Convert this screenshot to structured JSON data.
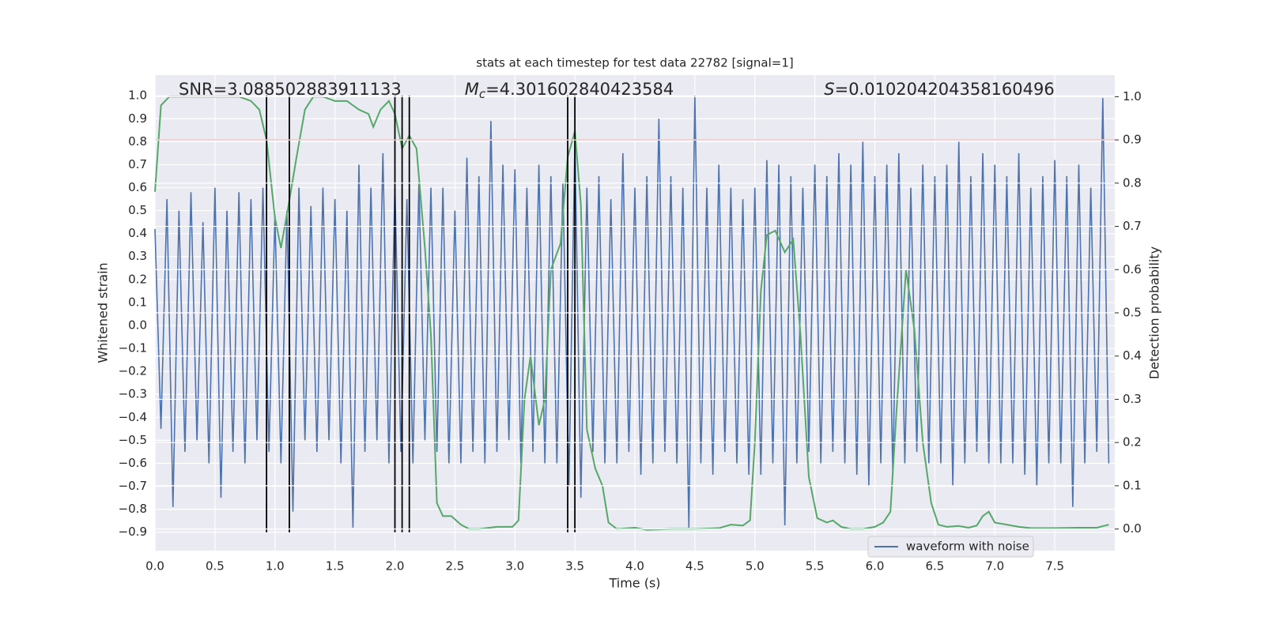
{
  "chart_data": {
    "type": "line",
    "title": "stats at each timestep for test data 22782 [signal=1]",
    "xlabel": "Time (s)",
    "ylabel": "Whitened strain",
    "y2label": "Detection probability",
    "grid": true,
    "legend": "lower right",
    "xlim": [
      0,
      8
    ],
    "ylim": [
      -0.98,
      1.09
    ],
    "y2lim": [
      -0.05,
      1.05
    ],
    "xticks": [
      {
        "value": 0,
        "label": "0.0"
      },
      {
        "value": 0.5,
        "label": "0.5"
      },
      {
        "value": 1,
        "label": "1.0"
      },
      {
        "value": 1.5,
        "label": "1.5"
      },
      {
        "value": 2,
        "label": "2.0"
      },
      {
        "value": 2.5,
        "label": "2.5"
      },
      {
        "value": 3,
        "label": "3.0"
      },
      {
        "value": 3.5,
        "label": "3.5"
      },
      {
        "value": 4,
        "label": "4.0"
      },
      {
        "value": 4.5,
        "label": "4.5"
      },
      {
        "value": 5,
        "label": "5.0"
      },
      {
        "value": 5.5,
        "label": "5.5"
      },
      {
        "value": 6,
        "label": "6.0"
      },
      {
        "value": 6.5,
        "label": "6.5"
      },
      {
        "value": 7,
        "label": "7.0"
      },
      {
        "value": 7.5,
        "label": "7.5"
      }
    ],
    "yticks": [
      {
        "value": -0.9,
        "label": "−0.9"
      },
      {
        "value": -0.8,
        "label": "−0.8"
      },
      {
        "value": -0.7,
        "label": "−0.7"
      },
      {
        "value": -0.6,
        "label": "−0.6"
      },
      {
        "value": -0.5,
        "label": "−0.5"
      },
      {
        "value": -0.4,
        "label": "−0.4"
      },
      {
        "value": -0.3,
        "label": "−0.3"
      },
      {
        "value": -0.2,
        "label": "−0.2"
      },
      {
        "value": -0.1,
        "label": "−0.1"
      },
      {
        "value": 0,
        "label": "0.0"
      },
      {
        "value": 0.1,
        "label": "0.1"
      },
      {
        "value": 0.2,
        "label": "0.2"
      },
      {
        "value": 0.3,
        "label": "0.3"
      },
      {
        "value": 0.4,
        "label": "0.4"
      },
      {
        "value": 0.5,
        "label": "0.5"
      },
      {
        "value": 0.6,
        "label": "0.6"
      },
      {
        "value": 0.7,
        "label": "0.7"
      },
      {
        "value": 0.8,
        "label": "0.8"
      },
      {
        "value": 0.9,
        "label": "0.9"
      },
      {
        "value": 1,
        "label": "1.0"
      }
    ],
    "y2ticks": [
      {
        "value": 0,
        "label": "0.0"
      },
      {
        "value": 0.1,
        "label": "0.1"
      },
      {
        "value": 0.2,
        "label": "0.2"
      },
      {
        "value": 0.3,
        "label": "0.3"
      },
      {
        "value": 0.4,
        "label": "0.4"
      },
      {
        "value": 0.5,
        "label": "0.5"
      },
      {
        "value": 0.6,
        "label": "0.6"
      },
      {
        "value": 0.7,
        "label": "0.7"
      },
      {
        "value": 0.8,
        "label": "0.8"
      },
      {
        "value": 0.9,
        "label": "0.9"
      },
      {
        "value": 1,
        "label": "1.0"
      }
    ],
    "annotations": [
      {
        "text": "SNR=3.088502883911133"
      },
      {
        "symbol": "M",
        "sub": "c",
        "text": "=4.301602840423584"
      },
      {
        "symbol": "S",
        "text": "=0.010204204358160496"
      }
    ],
    "threshold": {
      "value": 0.9,
      "axis": "y2",
      "color": "#c44e52"
    },
    "vlines": {
      "x": [
        0.93,
        1.12,
        2.0,
        2.06,
        2.12,
        3.44,
        3.5
      ],
      "ymin": -0.9,
      "ymax": 1.0,
      "color": "#000000"
    },
    "series": [
      {
        "name": "waveform with noise",
        "color": "#4c72b0",
        "axis": "y",
        "x": [
          0,
          0.05,
          0.1,
          0.15,
          0.2,
          0.25,
          0.3,
          0.35,
          0.4,
          0.45,
          0.5,
          0.55,
          0.6,
          0.65,
          0.7,
          0.75,
          0.8,
          0.85,
          0.9,
          0.95,
          1,
          1.05,
          1.1,
          1.15,
          1.2,
          1.25,
          1.3,
          1.35,
          1.4,
          1.45,
          1.5,
          1.55,
          1.6,
          1.65,
          1.7,
          1.75,
          1.8,
          1.85,
          1.9,
          1.95,
          2,
          2.05,
          2.1,
          2.15,
          2.2,
          2.25,
          2.3,
          2.35,
          2.4,
          2.45,
          2.5,
          2.55,
          2.6,
          2.65,
          2.7,
          2.75,
          2.8,
          2.85,
          2.9,
          2.95,
          3,
          3.05,
          3.1,
          3.15,
          3.2,
          3.25,
          3.3,
          3.35,
          3.4,
          3.45,
          3.5,
          3.55,
          3.6,
          3.65,
          3.7,
          3.75,
          3.8,
          3.85,
          3.9,
          3.95,
          4,
          4.05,
          4.1,
          4.15,
          4.2,
          4.25,
          4.3,
          4.35,
          4.4,
          4.45,
          4.5,
          4.55,
          4.6,
          4.65,
          4.7,
          4.75,
          4.8,
          4.85,
          4.9,
          4.95,
          5,
          5.05,
          5.1,
          5.15,
          5.2,
          5.25,
          5.3,
          5.35,
          5.4,
          5.45,
          5.5,
          5.55,
          5.6,
          5.65,
          5.7,
          5.75,
          5.8,
          5.85,
          5.9,
          5.95,
          6,
          6.05,
          6.1,
          6.15,
          6.2,
          6.25,
          6.3,
          6.35,
          6.4,
          6.45,
          6.5,
          6.55,
          6.6,
          6.65,
          6.7,
          6.75,
          6.8,
          6.85,
          6.9,
          6.95,
          7,
          7.05,
          7.1,
          7.15,
          7.2,
          7.25,
          7.3,
          7.35,
          7.4,
          7.45,
          7.5,
          7.55,
          7.6,
          7.65,
          7.7,
          7.75,
          7.8,
          7.85,
          7.9,
          7.95
        ],
        "values": [
          0.42,
          -0.45,
          0.55,
          -0.79,
          0.5,
          -0.55,
          0.58,
          -0.5,
          0.45,
          -0.6,
          0.6,
          -0.75,
          0.5,
          -0.55,
          0.58,
          -0.6,
          0.55,
          -0.5,
          0.6,
          -0.55,
          0.48,
          -0.6,
          0.5,
          -0.81,
          0.6,
          -0.5,
          0.52,
          -0.55,
          0.6,
          -0.5,
          0.55,
          -0.6,
          0.5,
          -0.88,
          0.7,
          -0.55,
          0.6,
          -0.5,
          0.75,
          -0.6,
          0.6,
          -0.55,
          0.55,
          -0.6,
          0.62,
          -0.5,
          0.6,
          -0.55,
          0.6,
          -0.6,
          0.5,
          -0.6,
          0.73,
          -0.55,
          0.65,
          -0.6,
          0.89,
          -0.55,
          0.7,
          -0.5,
          0.68,
          -0.6,
          0.6,
          -0.55,
          0.7,
          -0.6,
          0.65,
          -0.6,
          0.62,
          -0.7,
          0.8,
          -0.75,
          0.6,
          -0.55,
          0.65,
          -0.6,
          0.55,
          -0.6,
          0.75,
          -0.55,
          0.6,
          -0.65,
          0.65,
          -0.6,
          0.9,
          -0.55,
          0.65,
          -0.6,
          0.6,
          -0.88,
          1.0,
          -0.6,
          0.6,
          -0.65,
          0.7,
          -0.55,
          0.6,
          -0.6,
          0.55,
          -0.65,
          0.6,
          -0.65,
          0.72,
          -0.6,
          0.7,
          -0.87,
          0.65,
          -0.6,
          0.6,
          -0.55,
          0.7,
          -0.6,
          0.65,
          -0.55,
          0.75,
          -0.6,
          0.7,
          -0.65,
          0.8,
          -0.7,
          0.65,
          -0.6,
          0.7,
          -0.65,
          0.75,
          -0.6,
          0.6,
          -0.55,
          0.7,
          -0.6,
          0.65,
          -0.6,
          0.7,
          -0.7,
          0.8,
          -0.6,
          0.65,
          -0.55,
          0.75,
          -0.6,
          0.7,
          -0.6,
          0.65,
          -0.6,
          0.75,
          -0.65,
          0.6,
          -0.7,
          0.65,
          -0.6,
          0.72,
          -0.6,
          0.65,
          -0.79,
          0.7,
          -0.6,
          0.6,
          -0.55,
          0.99,
          -0.6
        ]
      },
      {
        "color": "#55a868",
        "axis": "y2",
        "x": [
          0,
          0.05,
          0.12,
          0.3,
          0.5,
          0.7,
          0.8,
          0.87,
          0.93,
          1,
          1.05,
          1.12,
          1.18,
          1.25,
          1.32,
          1.4,
          1.5,
          1.6,
          1.7,
          1.78,
          1.82,
          1.88,
          1.95,
          2,
          2.06,
          2.12,
          2.18,
          2.25,
          2.3,
          2.35,
          2.4,
          2.47,
          2.55,
          2.62,
          2.7,
          2.85,
          2.98,
          3.03,
          3.08,
          3.13,
          3.2,
          3.25,
          3.3,
          3.38,
          3.44,
          3.5,
          3.55,
          3.6,
          3.67,
          3.73,
          3.78,
          3.85,
          4,
          4.1,
          4.3,
          4.5,
          4.7,
          4.8,
          4.9,
          4.96,
          5,
          5.05,
          5.1,
          5.17,
          5.25,
          5.32,
          5.38,
          5.45,
          5.52,
          5.6,
          5.65,
          5.72,
          5.8,
          5.9,
          6,
          6.07,
          6.13,
          6.18,
          6.26,
          6.33,
          6.4,
          6.47,
          6.53,
          6.6,
          6.7,
          6.78,
          6.85,
          6.9,
          6.95,
          7,
          7.1,
          7.2,
          7.3,
          7.5,
          7.7,
          7.85,
          7.95
        ],
        "values": [
          0.78,
          0.98,
          1.0,
          1.0,
          1.0,
          1.0,
          0.99,
          0.97,
          0.9,
          0.72,
          0.65,
          0.76,
          0.86,
          0.97,
          1.0,
          1.0,
          0.99,
          0.99,
          0.97,
          0.96,
          0.93,
          0.97,
          0.99,
          0.96,
          0.88,
          0.91,
          0.88,
          0.65,
          0.45,
          0.06,
          0.03,
          0.03,
          0.01,
          0.0,
          0.0,
          0.005,
          0.005,
          0.02,
          0.3,
          0.4,
          0.24,
          0.3,
          0.6,
          0.66,
          0.86,
          0.92,
          0.75,
          0.23,
          0.14,
          0.1,
          0.015,
          0.0,
          0.003,
          -0.002,
          0.0,
          0.0,
          0.002,
          0.01,
          0.008,
          0.02,
          0.2,
          0.55,
          0.68,
          0.69,
          0.64,
          0.67,
          0.45,
          0.12,
          0.025,
          0.015,
          0.02,
          0.005,
          0.0,
          0.0,
          0.005,
          0.015,
          0.04,
          0.27,
          0.6,
          0.46,
          0.2,
          0.06,
          0.01,
          0.005,
          0.007,
          0.003,
          0.008,
          0.03,
          0.04,
          0.015,
          0.01,
          0.005,
          0.002,
          0.002,
          0.003,
          0.003,
          0.01
        ]
      }
    ]
  }
}
